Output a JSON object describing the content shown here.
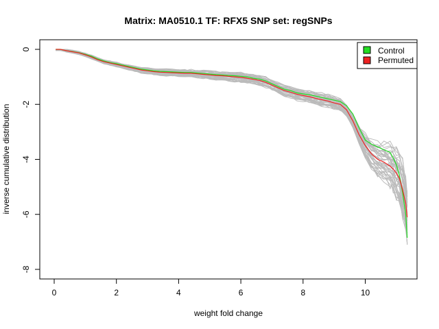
{
  "chart_data": {
    "type": "line",
    "title": "Matrix: MA0510.1 TF: RFX5 SNP set: regSNPs",
    "xlabel": "weight fold change",
    "ylabel": "inverse cumulative distribution",
    "xlim": [
      0,
      11.4
    ],
    "ylim": [
      -8,
      0
    ],
    "xticks": [
      "0",
      "2",
      "4",
      "6",
      "8",
      "10"
    ],
    "yticks": [
      "0",
      "-2",
      "-4",
      "-6",
      "-8"
    ],
    "legend": {
      "position": "top-right",
      "entries": [
        {
          "label": "Control",
          "color": "#22dd22"
        },
        {
          "label": "Permuted",
          "color": "#ee2222"
        }
      ]
    },
    "background_series": {
      "count": 40,
      "color": "#bbbbbb",
      "description_values_only": true
    },
    "series": [
      {
        "name": "Control",
        "color": "#22dd22",
        "x": [
          0.05,
          0.2,
          0.4,
          0.6,
          0.8,
          1.0,
          1.2,
          1.4,
          1.6,
          1.8,
          2.0,
          2.2,
          2.4,
          2.6,
          2.8,
          3.0,
          3.2,
          3.4,
          3.6,
          3.8,
          4.0,
          4.2,
          4.4,
          4.6,
          4.8,
          5.0,
          5.2,
          5.4,
          5.6,
          5.8,
          6.0,
          6.2,
          6.4,
          6.6,
          6.8,
          7.0,
          7.2,
          7.4,
          7.6,
          7.8,
          8.0,
          8.2,
          8.4,
          8.6,
          8.8,
          9.0,
          9.2,
          9.4,
          9.6,
          9.8,
          10.0,
          10.2,
          10.4,
          10.6,
          10.8,
          10.9,
          11.0,
          11.1,
          11.2,
          11.3,
          11.35
        ],
        "y": [
          0.0,
          0.0,
          -0.05,
          -0.08,
          -0.12,
          -0.18,
          -0.25,
          -0.35,
          -0.42,
          -0.48,
          -0.52,
          -0.57,
          -0.62,
          -0.67,
          -0.72,
          -0.75,
          -0.78,
          -0.8,
          -0.81,
          -0.82,
          -0.83,
          -0.84,
          -0.84,
          -0.86,
          -0.88,
          -0.9,
          -0.92,
          -0.93,
          -0.95,
          -0.96,
          -0.98,
          -1.0,
          -1.05,
          -1.08,
          -1.15,
          -1.25,
          -1.35,
          -1.45,
          -1.5,
          -1.58,
          -1.62,
          -1.65,
          -1.7,
          -1.75,
          -1.8,
          -1.85,
          -1.9,
          -2.05,
          -2.35,
          -2.85,
          -3.3,
          -3.45,
          -3.55,
          -3.65,
          -3.75,
          -3.95,
          -4.2,
          -4.6,
          -5.2,
          -6.0,
          -6.85
        ]
      },
      {
        "name": "Permuted",
        "color": "#ee2222",
        "x": [
          0.05,
          0.2,
          0.4,
          0.6,
          0.8,
          1.0,
          1.2,
          1.4,
          1.6,
          1.8,
          2.0,
          2.2,
          2.4,
          2.6,
          2.8,
          3.0,
          3.2,
          3.4,
          3.6,
          3.8,
          4.0,
          4.2,
          4.4,
          4.6,
          4.8,
          5.0,
          5.2,
          5.4,
          5.6,
          5.8,
          6.0,
          6.2,
          6.4,
          6.6,
          6.8,
          7.0,
          7.2,
          7.4,
          7.6,
          7.8,
          8.0,
          8.2,
          8.4,
          8.6,
          8.8,
          9.0,
          9.2,
          9.4,
          9.6,
          9.8,
          10.0,
          10.2,
          10.4,
          10.6,
          10.8,
          10.9,
          11.0,
          11.1,
          11.2,
          11.3,
          11.35
        ],
        "y": [
          0.0,
          0.0,
          -0.05,
          -0.09,
          -0.13,
          -0.2,
          -0.28,
          -0.38,
          -0.45,
          -0.5,
          -0.55,
          -0.6,
          -0.65,
          -0.7,
          -0.75,
          -0.78,
          -0.81,
          -0.83,
          -0.84,
          -0.85,
          -0.86,
          -0.87,
          -0.87,
          -0.89,
          -0.91,
          -0.93,
          -0.95,
          -0.96,
          -0.98,
          -1.0,
          -1.02,
          -1.05,
          -1.09,
          -1.13,
          -1.2,
          -1.3,
          -1.4,
          -1.5,
          -1.56,
          -1.63,
          -1.68,
          -1.72,
          -1.78,
          -1.83,
          -1.88,
          -1.95,
          -2.0,
          -2.2,
          -2.6,
          -3.1,
          -3.5,
          -3.8,
          -4.0,
          -4.1,
          -4.25,
          -4.35,
          -4.5,
          -4.7,
          -5.1,
          -5.6,
          -6.1
        ]
      }
    ]
  }
}
